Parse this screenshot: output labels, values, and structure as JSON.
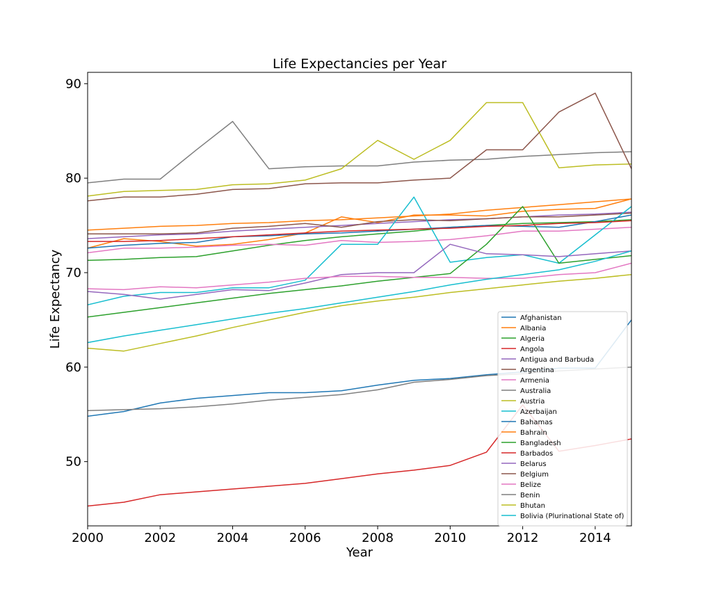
{
  "chart_data": {
    "type": "line",
    "title": "Life Expectancies per Year",
    "xlabel": "Year",
    "ylabel": "Life Expectancy",
    "xlim": [
      2000,
      2015
    ],
    "ylim": [
      43.2,
      91.2
    ],
    "xticks": [
      2000,
      2002,
      2004,
      2006,
      2008,
      2010,
      2012,
      2014
    ],
    "yticks": [
      50,
      60,
      70,
      80,
      90
    ],
    "grid": false,
    "legend_position": "lower-right",
    "x": [
      2000,
      2001,
      2002,
      2003,
      2004,
      2005,
      2006,
      2007,
      2008,
      2009,
      2010,
      2011,
      2012,
      2013,
      2014,
      2015
    ],
    "series": [
      {
        "name": "Afghanistan",
        "color": "#1f77b4",
        "values": [
          54.8,
          55.3,
          56.2,
          56.7,
          57.0,
          57.3,
          57.3,
          57.5,
          58.1,
          58.6,
          58.8,
          59.2,
          59.5,
          59.9,
          59.9,
          65.0
        ]
      },
      {
        "name": "Albania",
        "color": "#ff7f0e",
        "values": [
          72.6,
          73.6,
          73.3,
          72.8,
          73.0,
          73.5,
          74.2,
          75.9,
          75.3,
          76.1,
          76.1,
          76.0,
          76.5,
          76.7,
          76.8,
          77.8
        ]
      },
      {
        "name": "Algeria",
        "color": "#2ca02c",
        "values": [
          71.3,
          71.4,
          71.6,
          71.7,
          72.3,
          72.9,
          73.4,
          73.8,
          74.1,
          74.4,
          74.8,
          75.0,
          75.2,
          75.3,
          75.4,
          75.6
        ]
      },
      {
        "name": "Angola",
        "color": "#d62728",
        "values": [
          45.3,
          45.7,
          46.5,
          46.8,
          47.1,
          47.4,
          47.7,
          48.2,
          48.7,
          49.1,
          49.6,
          51.0,
          56.0,
          51.1,
          51.7,
          52.4
        ]
      },
      {
        "name": "Antigua and Barbuda",
        "color": "#9467bd",
        "values": [
          73.6,
          73.8,
          74.0,
          74.1,
          74.4,
          74.6,
          74.8,
          75.0,
          75.2,
          75.4,
          75.6,
          75.7,
          75.9,
          76.1,
          76.2,
          76.4
        ]
      },
      {
        "name": "Argentina",
        "color": "#8c564b",
        "values": [
          74.1,
          74.1,
          74.1,
          74.2,
          74.7,
          74.9,
          75.2,
          74.8,
          75.4,
          75.6,
          75.5,
          75.7,
          75.9,
          75.9,
          76.1,
          76.3
        ]
      },
      {
        "name": "Armenia",
        "color": "#e377c2",
        "values": [
          72.1,
          72.6,
          72.6,
          72.7,
          72.9,
          73.0,
          72.9,
          73.4,
          73.2,
          73.3,
          73.5,
          73.9,
          74.4,
          74.4,
          74.6,
          74.8
        ]
      },
      {
        "name": "Australia",
        "color": "#7f7f7f",
        "values": [
          79.5,
          79.9,
          79.9,
          83.0,
          86.0,
          81.0,
          81.2,
          81.3,
          81.3,
          81.7,
          81.9,
          82.0,
          82.3,
          82.5,
          82.7,
          82.8
        ]
      },
      {
        "name": "Austria",
        "color": "#bcbd22",
        "values": [
          78.1,
          78.6,
          78.7,
          78.8,
          79.3,
          79.4,
          79.8,
          81.0,
          84.0,
          82.0,
          84.0,
          88.0,
          88.0,
          81.1,
          81.4,
          81.5
        ]
      },
      {
        "name": "Azerbaijan",
        "color": "#17becf",
        "values": [
          66.6,
          67.5,
          67.9,
          67.9,
          68.4,
          68.4,
          69.2,
          73.0,
          73.0,
          78.0,
          71.1,
          71.6,
          71.9,
          71.0,
          74.0,
          77.0
        ]
      },
      {
        "name": "Bahamas",
        "color": "#1f77b4",
        "values": [
          72.6,
          72.9,
          73.1,
          73.2,
          73.8,
          73.9,
          74.1,
          74.2,
          74.4,
          74.6,
          74.8,
          75.0,
          74.9,
          74.8,
          75.4,
          76.1
        ]
      },
      {
        "name": "Bahrain",
        "color": "#ff7f0e",
        "values": [
          74.5,
          74.7,
          74.9,
          75.0,
          75.2,
          75.3,
          75.5,
          75.6,
          75.8,
          76.0,
          76.2,
          76.6,
          76.9,
          77.2,
          77.5,
          77.8
        ]
      },
      {
        "name": "Bangladesh",
        "color": "#2ca02c",
        "values": [
          65.3,
          65.8,
          66.3,
          66.8,
          67.3,
          67.8,
          68.2,
          68.6,
          69.1,
          69.5,
          69.9,
          73.0,
          77.0,
          71.0,
          71.4,
          71.8
        ]
      },
      {
        "name": "Barbados",
        "color": "#d62728",
        "values": [
          73.3,
          73.3,
          73.4,
          73.6,
          73.8,
          74.0,
          74.2,
          74.4,
          74.5,
          74.6,
          74.7,
          74.9,
          75.0,
          75.2,
          75.3,
          75.5
        ]
      },
      {
        "name": "Belarus",
        "color": "#9467bd",
        "values": [
          68.0,
          67.7,
          67.2,
          67.7,
          68.2,
          68.1,
          68.9,
          69.8,
          70.0,
          70.0,
          73.0,
          72.0,
          71.9,
          71.7,
          72.0,
          72.3
        ]
      },
      {
        "name": "Belgium",
        "color": "#8c564b",
        "values": [
          77.6,
          78.0,
          78.0,
          78.3,
          78.8,
          78.9,
          79.4,
          79.5,
          79.5,
          79.8,
          80.0,
          83.0,
          83.0,
          87.0,
          89.0,
          81.0
        ]
      },
      {
        "name": "Belize",
        "color": "#e377c2",
        "values": [
          68.3,
          68.2,
          68.5,
          68.4,
          68.7,
          69.0,
          69.4,
          69.6,
          69.6,
          69.5,
          69.5,
          69.4,
          69.4,
          69.8,
          70.0,
          71.0
        ]
      },
      {
        "name": "Benin",
        "color": "#7f7f7f",
        "values": [
          55.4,
          55.5,
          55.6,
          55.8,
          56.1,
          56.5,
          56.8,
          57.1,
          57.6,
          58.4,
          58.7,
          59.1,
          59.3,
          59.6,
          59.8,
          60.0
        ]
      },
      {
        "name": "Bhutan",
        "color": "#bcbd22",
        "values": [
          62.0,
          61.7,
          62.5,
          63.3,
          64.2,
          65.0,
          65.8,
          66.5,
          67.0,
          67.4,
          67.9,
          68.3,
          68.7,
          69.1,
          69.4,
          69.8
        ]
      },
      {
        "name": "Bolivia (Plurinational State of)",
        "color": "#17becf",
        "values": [
          62.6,
          63.3,
          63.9,
          64.5,
          65.1,
          65.7,
          66.2,
          66.8,
          67.4,
          68.0,
          68.7,
          69.3,
          69.8,
          70.3,
          71.2,
          72.3
        ]
      }
    ]
  }
}
